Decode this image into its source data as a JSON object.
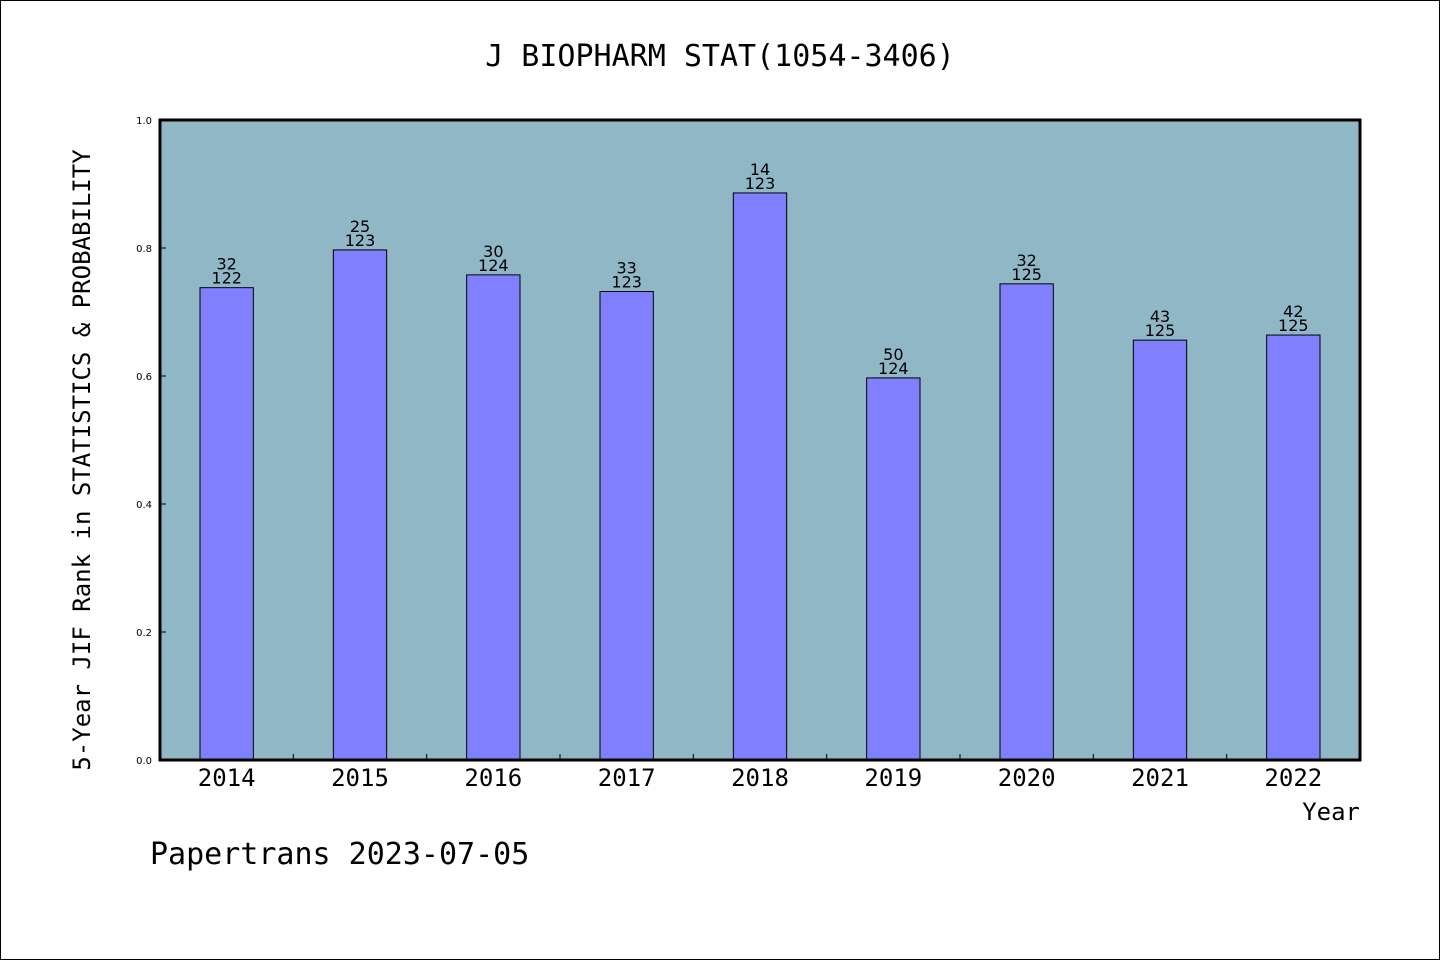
{
  "chart_data": {
    "type": "bar",
    "title": "J BIOPHARM STAT(1054-3406)",
    "xlabel": "Year",
    "ylabel": "5-Year JIF Rank in STATISTICS & PROBABILITY",
    "categories": [
      "2014",
      "2015",
      "2016",
      "2017",
      "2018",
      "2019",
      "2020",
      "2021",
      "2022"
    ],
    "values": [
      0.738,
      0.797,
      0.758,
      0.732,
      0.886,
      0.597,
      0.744,
      0.656,
      0.664
    ],
    "rank": [
      "32",
      "25",
      "30",
      "33",
      "14",
      "50",
      "32",
      "43",
      "42"
    ],
    "total": [
      "122",
      "123",
      "124",
      "123",
      "123",
      "124",
      "125",
      "125",
      "125"
    ],
    "ylim": [
      0,
      1.0
    ],
    "yticks": [
      "0.0",
      "0.2",
      "0.4",
      "0.6",
      "0.8",
      "1.0"
    ],
    "grid": false,
    "colors": {
      "plot_background": "#8fb7c6",
      "bar": "#8080ff"
    }
  },
  "footer": "Papertrans 2023-07-05"
}
